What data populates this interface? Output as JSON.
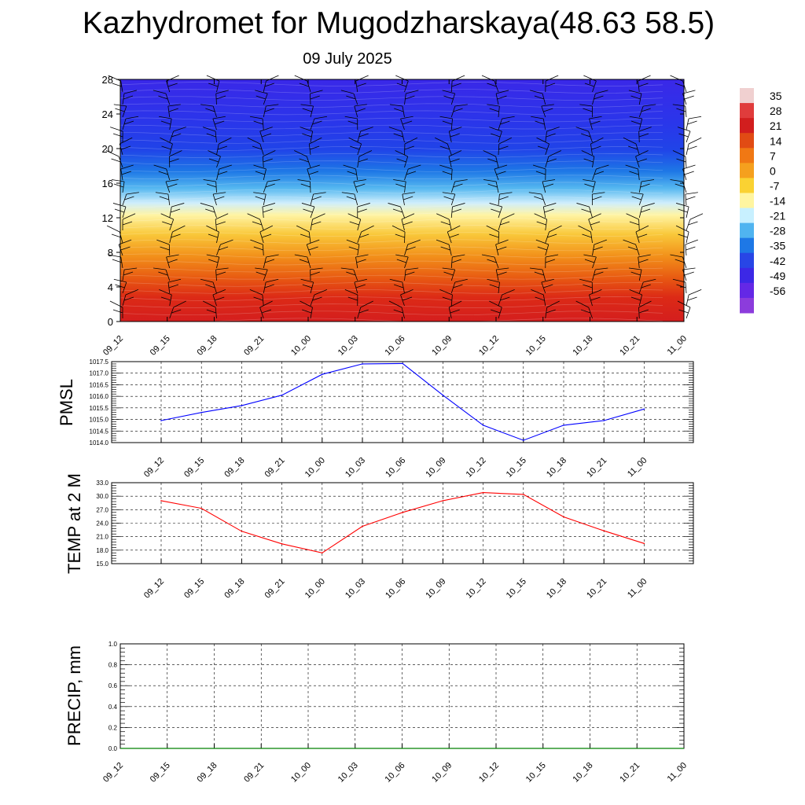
{
  "header": {
    "title": "Kazhydromet for Mugodzharskaya(48.63 58.5)",
    "date": "09 July 2025"
  },
  "chart_data": [
    {
      "type": "heatmap",
      "title": "",
      "x_ticks": [
        "09_12",
        "09_15",
        "09_18",
        "09_21",
        "10_00",
        "10_03",
        "10_06",
        "10_09",
        "10_12",
        "10_15",
        "10_18",
        "10_21",
        "11_00"
      ],
      "y_ticks": [
        "0",
        "4",
        "8",
        "12",
        "16",
        "20",
        "24",
        "28"
      ],
      "ylim": [
        0,
        28
      ],
      "colorbar_labels": [
        "35",
        "28",
        "21",
        "14",
        "7",
        "0",
        "-7",
        "-14",
        "-21",
        "-28",
        "-35",
        "-42",
        "-49",
        "-56"
      ],
      "colorbar_colors": [
        "#f0d0d0",
        "#e03c3c",
        "#d21e1e",
        "#e14b14",
        "#f07814",
        "#f5a01e",
        "#fad232",
        "#fff5a0",
        "#c8f0ff",
        "#50b4f0",
        "#1e78e6",
        "#2846e6",
        "#3c28e6",
        "#6428e6",
        "#8c3cdc"
      ],
      "colors": {
        "top": "#3428ea",
        "cold": "#1e3ce8",
        "mid": "#fff6a0",
        "warm": "#f5a01e",
        "hot": "#d81e1e",
        "wind": "#000000"
      },
      "wind_barbs": true
    },
    {
      "type": "line",
      "ylabel": "PMSL",
      "x": [
        "09_12",
        "09_15",
        "09_18",
        "09_21",
        "10_00",
        "10_03",
        "10_06",
        "10_09",
        "10_12",
        "10_15",
        "10_18",
        "10_21",
        "11_00"
      ],
      "y_ticks": [
        "1014.0",
        "1014.5",
        "1015.0",
        "1015.5",
        "1016.0",
        "1016.5",
        "1017.0",
        "1017.5"
      ],
      "ylim": [
        1014.0,
        1017.5
      ],
      "values": [
        1014.95,
        1015.3,
        1015.6,
        1016.05,
        1016.95,
        1017.4,
        1017.42,
        1016.05,
        1014.75,
        1014.1,
        1014.75,
        1014.95,
        1015.45
      ],
      "color": "#0000ff",
      "grid": true
    },
    {
      "type": "line",
      "ylabel": "TEMP at 2 M",
      "x": [
        "09_12",
        "09_15",
        "09_18",
        "09_21",
        "10_00",
        "10_03",
        "10_06",
        "10_09",
        "10_12",
        "10_15",
        "10_18",
        "10_21",
        "11_00"
      ],
      "y_ticks": [
        "15.0",
        "18.0",
        "21.0",
        "24.0",
        "27.0",
        "30.0",
        "33.0"
      ],
      "ylim": [
        15.0,
        33.0
      ],
      "values": [
        29.0,
        27.3,
        22.2,
        19.4,
        17.4,
        23.3,
        26.4,
        29.0,
        30.8,
        30.4,
        25.4,
        22.3,
        19.5
      ],
      "color": "#ff0000",
      "grid": true
    },
    {
      "type": "line",
      "ylabel": "PRECIP, mm",
      "x": [
        "09_12",
        "09_15",
        "09_18",
        "09_21",
        "10_00",
        "10_03",
        "10_06",
        "10_09",
        "10_12",
        "10_15",
        "10_18",
        "10_21",
        "11_00"
      ],
      "y_ticks": [
        "0.0",
        "0.2",
        "0.4",
        "0.6",
        "0.8",
        "1.0"
      ],
      "ylim": [
        0.0,
        1.0
      ],
      "values": [
        0,
        0,
        0,
        0,
        0,
        0,
        0,
        0,
        0,
        0,
        0,
        0,
        0
      ],
      "color": "#008000",
      "grid": true
    }
  ]
}
